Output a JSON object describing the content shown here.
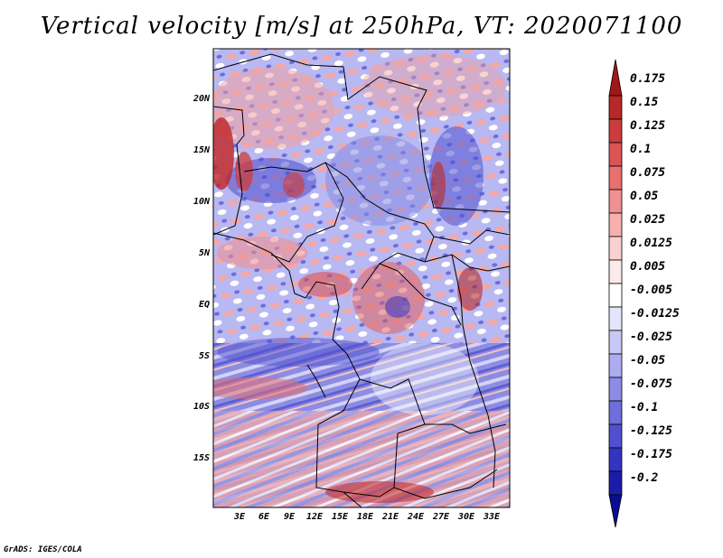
{
  "title": "Vertical velocity [m/s] at 250hPa, VT: 2020071100",
  "footer": "GrADS: IGES/COLA",
  "map": {
    "region": "Central Africa",
    "latitude_ticks": [
      "20N",
      "15N",
      "10N",
      "5N",
      "EQ",
      "5S",
      "10S",
      "15S"
    ],
    "longitude_ticks": [
      "3E",
      "6E",
      "9E",
      "12E",
      "15E",
      "18E",
      "21E",
      "24E",
      "27E",
      "30E",
      "33E"
    ]
  },
  "colorbar": {
    "labels": [
      "0.175",
      "0.15",
      "0.125",
      "0.1",
      "0.075",
      "0.05",
      "0.025",
      "0.0125",
      "0.005",
      "-0.005",
      "-0.0125",
      "-0.025",
      "-0.05",
      "-0.075",
      "-0.1",
      "-0.125",
      "-0.175",
      "-0.2"
    ],
    "colors": [
      "#a01818",
      "#b82828",
      "#cc3c3c",
      "#dc5454",
      "#e87070",
      "#f09090",
      "#f6b0b0",
      "#fad0d0",
      "#fdeaea",
      "#ffffff",
      "#e4e4fc",
      "#c8c8f6",
      "#acacf0",
      "#8c8ce6",
      "#6e6edc",
      "#5050d0",
      "#3434c0",
      "#1c1caa",
      "#0c0c90"
    ]
  }
}
